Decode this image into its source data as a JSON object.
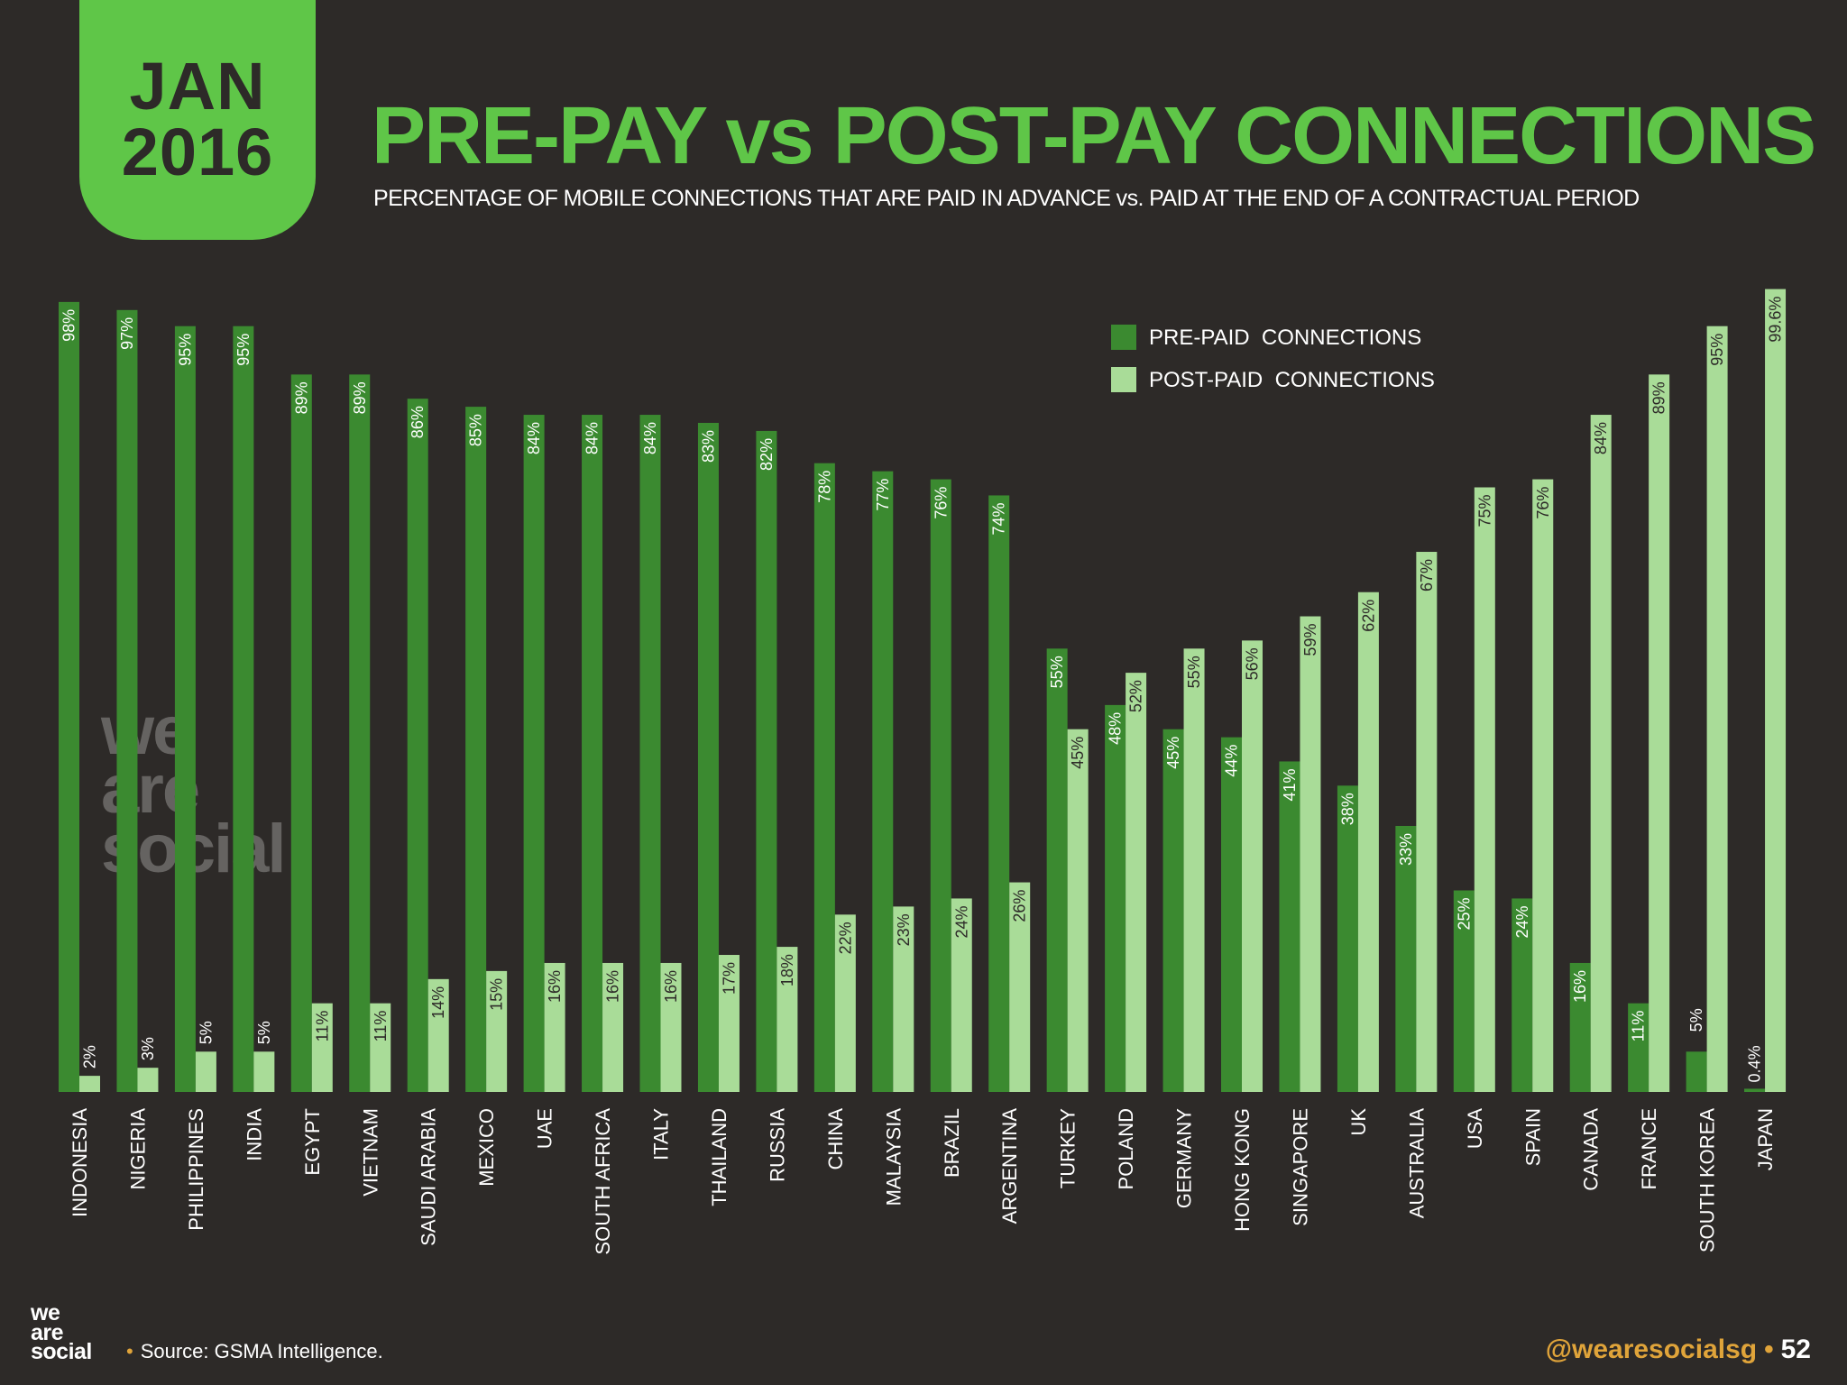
{
  "badge": {
    "month": "JAN",
    "year": "2016"
  },
  "title": "PRE-PAY vs POST-PAY CONNECTIONS",
  "subtitle": "PERCENTAGE OF MOBILE CONNECTIONS THAT ARE PAID IN ADVANCE vs. PAID AT THE END OF A CONTRACTUAL PERIOD",
  "watermark": {
    "line1": "we",
    "line2": "are",
    "line3": "social"
  },
  "footer": {
    "logo_line1": "we",
    "logo_line2": "are",
    "logo_line3": "social",
    "source_bullet": "•",
    "source": "Source: GSMA Intelligence.",
    "handle": "@wearesocialsg",
    "separator": "•",
    "page": "52"
  },
  "colors": {
    "prepaid": "#3b8a30",
    "postpaid": "#a9dc98",
    "accent": "#5fc648",
    "background": "#2d2a28"
  },
  "chart_data": {
    "type": "bar",
    "legend_position": "top-right",
    "ylim": [
      0,
      100
    ],
    "categories": [
      "INDONESIA",
      "NIGERIA",
      "PHILIPPINES",
      "INDIA",
      "EGYPT",
      "VIETNAM",
      "SAUDI ARABIA",
      "MEXICO",
      "UAE",
      "SOUTH AFRICA",
      "ITALY",
      "THAILAND",
      "RUSSIA",
      "CHINA",
      "MALAYSIA",
      "BRAZIL",
      "ARGENTINA",
      "TURKEY",
      "POLAND",
      "GERMANY",
      "HONG KONG",
      "SINGAPORE",
      "UK",
      "AUSTRALIA",
      "USA",
      "SPAIN",
      "CANADA",
      "FRANCE",
      "SOUTH KOREA",
      "JAPAN"
    ],
    "series": [
      {
        "name": "PRE-PAID  CONNECTIONS",
        "values": [
          98,
          97,
          95,
          95,
          89,
          89,
          86,
          85,
          84,
          84,
          84,
          83,
          82,
          78,
          77,
          76,
          74,
          55,
          48,
          45,
          44,
          41,
          38,
          33,
          25,
          24,
          16,
          11,
          5,
          0.4
        ],
        "labels": [
          "98%",
          "97%",
          "95%",
          "95%",
          "89%",
          "89%",
          "86%",
          "85%",
          "84%",
          "84%",
          "84%",
          "83%",
          "82%",
          "78%",
          "77%",
          "76%",
          "74%",
          "55%",
          "48%",
          "45%",
          "44%",
          "41%",
          "38%",
          "33%",
          "25%",
          "24%",
          "16%",
          "11%",
          "5%",
          "0.4%"
        ]
      },
      {
        "name": "POST-PAID  CONNECTIONS",
        "values": [
          2,
          3,
          5,
          5,
          11,
          11,
          14,
          15,
          16,
          16,
          16,
          17,
          18,
          22,
          23,
          24,
          26,
          45,
          52,
          55,
          56,
          59,
          62,
          67,
          75,
          76,
          84,
          89,
          95,
          99.6
        ],
        "labels": [
          "2%",
          "3%",
          "5%",
          "5%",
          "11%",
          "11%",
          "14%",
          "15%",
          "16%",
          "16%",
          "16%",
          "17%",
          "18%",
          "22%",
          "23%",
          "24%",
          "26%",
          "45%",
          "52%",
          "55%",
          "56%",
          "59%",
          "62%",
          "67%",
          "75%",
          "76%",
          "84%",
          "89%",
          "95%",
          "99.6%"
        ]
      }
    ]
  }
}
